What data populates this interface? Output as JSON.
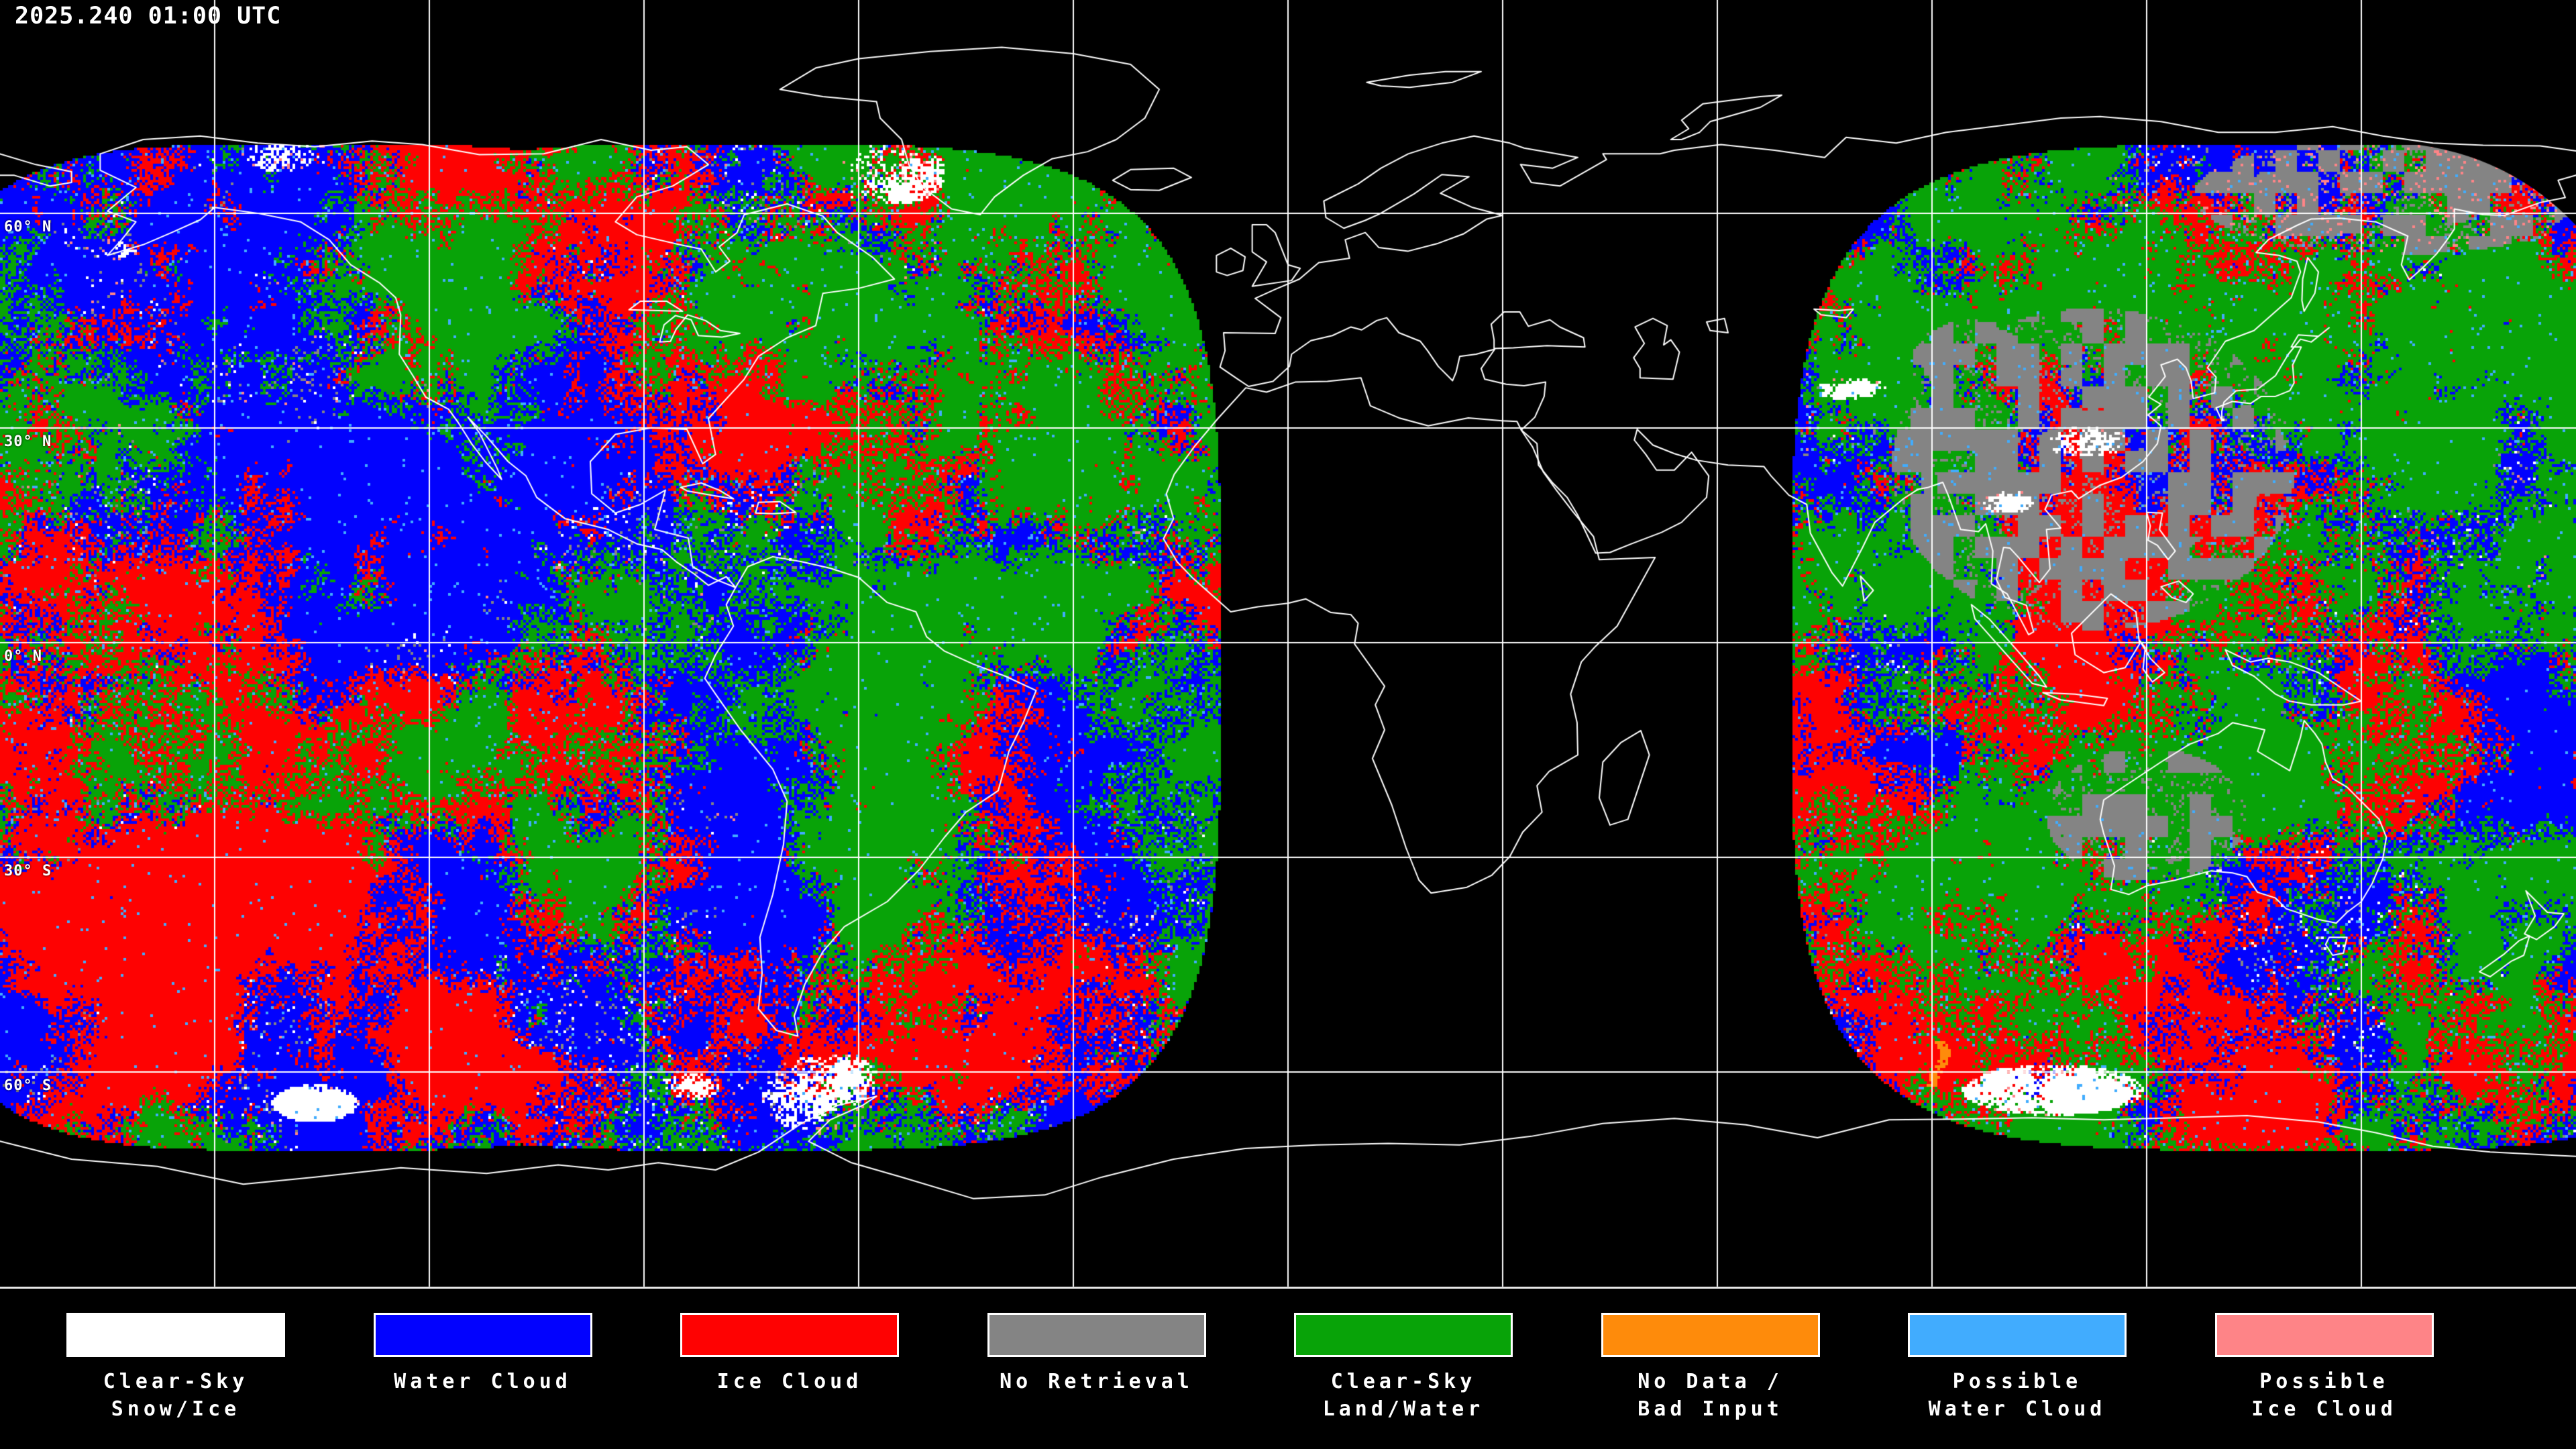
{
  "header": {
    "timestamp": "2025.240 01:00 UTC"
  },
  "map": {
    "background_color": "#000000",
    "grid_color": "#ffffff",
    "coastline_color": "#ffffff",
    "grid_interval_degrees": 30,
    "latitude_labels": [
      {
        "label": "60° N",
        "lat": 60
      },
      {
        "label": "30° N",
        "lat": 30
      },
      {
        "label": "0° N",
        "lat": 0
      },
      {
        "label": "30° S",
        "lat": -30
      },
      {
        "label": "60° S",
        "lat": -60
      }
    ]
  },
  "classification_colors": {
    "clear_sky_snow_ice": "#ffffff",
    "water_cloud": "#0202fe",
    "ice_cloud": "#fe0202",
    "no_retrieval": "#848484",
    "clear_sky_land_water": "#08a308",
    "no_data_bad_input": "#fe8b0b",
    "possible_water_cloud": "#41acfe",
    "possible_ice_cloud": "#fe8487"
  },
  "legend": {
    "separator_color": "#e6e6e6",
    "items": [
      {
        "id": "clear-sky-snow-ice",
        "color_key": "clear_sky_snow_ice",
        "lines": [
          "Clear-Sky",
          "Snow/Ice"
        ]
      },
      {
        "id": "water-cloud",
        "color_key": "water_cloud",
        "lines": [
          "Water Cloud"
        ]
      },
      {
        "id": "ice-cloud",
        "color_key": "ice_cloud",
        "lines": [
          "Ice Cloud"
        ]
      },
      {
        "id": "no-retrieval",
        "color_key": "no_retrieval",
        "lines": [
          "No Retrieval"
        ]
      },
      {
        "id": "clear-sky-land-water",
        "color_key": "clear_sky_land_water",
        "lines": [
          "Clear-Sky",
          "Land/Water"
        ]
      },
      {
        "id": "no-data-bad-input",
        "color_key": "no_data_bad_input",
        "lines": [
          "No Data /",
          "Bad Input"
        ]
      },
      {
        "id": "possible-water-cloud",
        "color_key": "possible_water_cloud",
        "lines": [
          "Possible",
          "Water Cloud"
        ]
      },
      {
        "id": "possible-ice-cloud",
        "color_key": "possible_ice_cloud",
        "lines": [
          "Possible",
          "Ice Cloud"
        ]
      }
    ]
  }
}
